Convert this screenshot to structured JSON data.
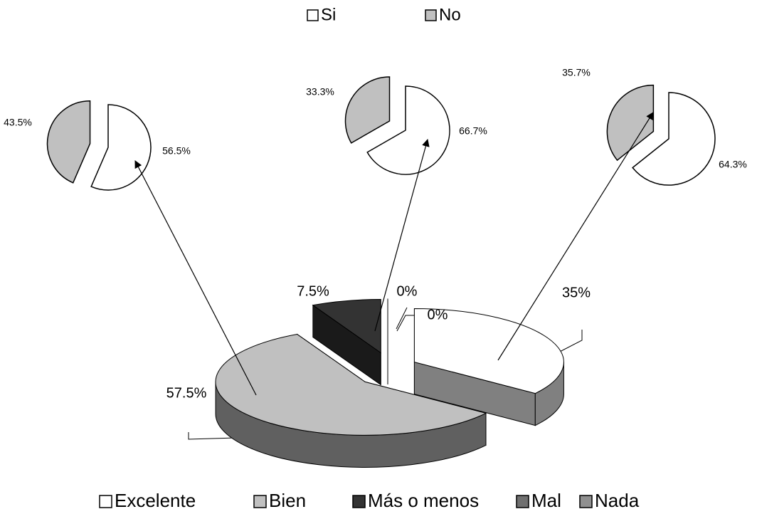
{
  "chart_data": [
    {
      "type": "pie3d",
      "categories": [
        "Excelente",
        "Bien",
        "Más o menos",
        "Mal",
        "Nada"
      ],
      "values": [
        35,
        57.5,
        7.5,
        0,
        0
      ],
      "value_labels": [
        "35%",
        "57.5%",
        "7.5%",
        "0%",
        "0%"
      ],
      "colors": [
        "#ffffff",
        "#c0c0c0",
        "#333333",
        "#707070",
        "#909090"
      ],
      "legend": "bottom"
    },
    {
      "type": "pie",
      "categories": [
        "Si",
        "No"
      ],
      "values": [
        56.5,
        43.5
      ],
      "value_labels": [
        "56.5%",
        "43.5%"
      ],
      "colors": [
        "#ffffff",
        "#c0c0c0"
      ],
      "legend": "top"
    },
    {
      "type": "pie",
      "values": [
        66.7,
        33.3
      ],
      "value_labels": [
        "66.7%",
        "33.3%"
      ],
      "colors": [
        "#ffffff",
        "#c0c0c0"
      ]
    },
    {
      "type": "pie",
      "values": [
        64.3,
        35.7
      ],
      "value_labels": [
        "64.3%",
        "35.7%"
      ],
      "colors": [
        "#ffffff",
        "#c0c0c0"
      ]
    }
  ]
}
